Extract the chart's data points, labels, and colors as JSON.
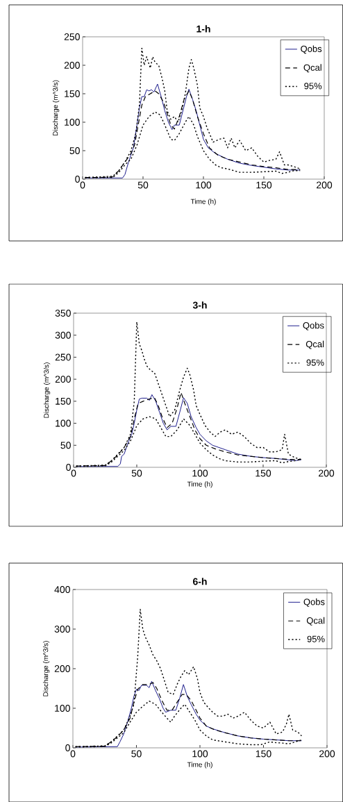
{
  "chart_data": [
    {
      "type": "line",
      "title": "1-h",
      "xlabel": "Time (h)",
      "ylabel": "Discharge (m^3/s)",
      "xlim": [
        0,
        200
      ],
      "xticks": [
        0,
        50,
        100,
        150,
        200
      ],
      "ylim": [
        0,
        250
      ],
      "yticks": [
        0,
        50,
        100,
        150,
        200,
        250
      ],
      "legend": "top right",
      "series": [
        {
          "name": "Qobs",
          "color": "#1c1c8c",
          "line_style": "solid",
          "x": [
            2,
            33,
            35,
            38,
            42,
            45,
            47,
            49,
            51,
            53,
            55,
            57,
            59,
            62,
            65,
            68,
            71,
            74,
            76,
            80,
            83,
            86,
            88,
            91,
            94,
            97,
            100,
            104,
            110,
            120,
            130,
            140,
            150,
            160,
            170,
            180
          ],
          "values": [
            2,
            2,
            8,
            30,
            55,
            95,
            125,
            145,
            145,
            157,
            155,
            157,
            153,
            167,
            145,
            120,
            100,
            87,
            95,
            95,
            120,
            145,
            158,
            140,
            120,
            95,
            70,
            55,
            45,
            35,
            28,
            24,
            21,
            18,
            16,
            16
          ]
        },
        {
          "name": "Qcal",
          "color": "#000000",
          "line_style": "dashed",
          "x": [
            2,
            15,
            25,
            30,
            35,
            40,
            43,
            46,
            49,
            52,
            56,
            60,
            63,
            67,
            70,
            73,
            76,
            80,
            84,
            88,
            91,
            95,
            100,
            105,
            112,
            120,
            130,
            140,
            150,
            160,
            170,
            180
          ],
          "values": [
            3,
            3,
            4,
            15,
            30,
            45,
            60,
            95,
            130,
            145,
            150,
            155,
            150,
            135,
            115,
            95,
            88,
            110,
            140,
            155,
            140,
            110,
            80,
            55,
            42,
            35,
            30,
            25,
            22,
            20,
            17,
            17
          ]
        },
        {
          "name": "95%",
          "color": "#000000",
          "line_style": "dotted",
          "x": [
            2,
            25,
            30,
            35,
            40,
            44,
            47,
            49,
            51,
            53,
            56,
            58,
            60,
            63,
            66,
            68,
            70,
            73,
            76,
            79,
            82,
            85,
            88,
            90,
            92,
            95,
            97,
            100,
            103,
            108,
            113,
            117,
            120,
            123,
            126,
            130,
            135,
            140,
            145,
            150,
            155,
            160,
            163,
            167,
            170,
            175,
            180
          ],
          "values": [
            3,
            5,
            15,
            30,
            50,
            80,
            130,
            230,
            200,
            215,
            195,
            215,
            205,
            200,
            175,
            155,
            120,
            105,
            110,
            100,
            120,
            150,
            195,
            210,
            195,
            165,
            125,
            110,
            90,
            65,
            70,
            72,
            55,
            72,
            55,
            68,
            50,
            55,
            40,
            30,
            33,
            35,
            48,
            25,
            25,
            22,
            18
          ]
        },
        {
          "color": "#000000",
          "line_style": "dotted",
          "x": [
            2,
            25,
            30,
            35,
            40,
            45,
            50,
            55,
            60,
            64,
            67,
            70,
            73,
            76,
            80,
            85,
            88,
            92,
            95,
            100,
            105,
            110,
            115,
            120,
            125,
            130,
            140,
            150,
            160,
            165,
            170,
            175,
            180
          ],
          "values": [
            2,
            3,
            12,
            25,
            35,
            60,
            95,
            110,
            118,
            113,
            100,
            85,
            70,
            68,
            80,
            100,
            110,
            95,
            75,
            50,
            35,
            25,
            20,
            18,
            15,
            12,
            12,
            13,
            14,
            10,
            12,
            15,
            15
          ]
        }
      ]
    },
    {
      "type": "line",
      "title": "3-h",
      "xlabel": "Time (h)",
      "ylabel": "Discharge (m^3/s)",
      "xlim": [
        0,
        200
      ],
      "xticks": [
        0,
        50,
        100,
        150,
        200
      ],
      "ylim": [
        0,
        350
      ],
      "yticks": [
        0,
        50,
        100,
        150,
        200,
        250,
        300,
        350
      ],
      "legend": "top right",
      "series": [
        {
          "name": "Qobs",
          "color": "#1c1c8c",
          "line_style": "solid",
          "x": [
            2,
            35,
            37,
            38,
            40,
            43,
            46,
            48,
            50,
            52,
            54,
            58,
            60,
            62,
            65,
            68,
            71,
            74,
            77,
            81,
            84,
            87,
            90,
            93,
            97,
            100,
            105,
            110,
            120,
            130,
            140,
            150,
            160,
            170,
            175,
            180
          ],
          "values": [
            2,
            2,
            8,
            25,
            30,
            55,
            75,
            100,
            130,
            155,
            157,
            157,
            152,
            165,
            150,
            125,
            100,
            85,
            93,
            93,
            125,
            158,
            145,
            115,
            90,
            75,
            60,
            50,
            40,
            30,
            25,
            22,
            20,
            17,
            15,
            17
          ]
        },
        {
          "name": "Qcal",
          "color": "#000000",
          "line_style": "dashed",
          "x": [
            2,
            25,
            30,
            35,
            40,
            45,
            48,
            51,
            55,
            60,
            64,
            67,
            70,
            74,
            78,
            82,
            85,
            88,
            92,
            96,
            100,
            105,
            112,
            120,
            130,
            140,
            150,
            160,
            170,
            180
          ],
          "values": [
            3,
            4,
            15,
            28,
            45,
            70,
            110,
            145,
            150,
            155,
            158,
            140,
            115,
            90,
            100,
            135,
            170,
            145,
            115,
            85,
            65,
            50,
            42,
            35,
            28,
            25,
            22,
            20,
            18,
            18
          ]
        },
        {
          "name": "95%",
          "color": "#000000",
          "line_style": "dotted",
          "x": [
            2,
            25,
            30,
            35,
            40,
            45,
            48,
            50,
            52,
            54,
            56,
            58,
            61,
            64,
            67,
            70,
            73,
            76,
            80,
            84,
            87,
            90,
            92,
            95,
            97,
            100,
            104,
            108,
            112,
            116,
            120,
            125,
            130,
            135,
            140,
            145,
            150,
            155,
            160,
            165,
            167,
            170,
            175,
            180
          ],
          "values": [
            3,
            5,
            15,
            30,
            45,
            75,
            150,
            330,
            280,
            265,
            245,
            230,
            220,
            215,
            190,
            165,
            140,
            115,
            130,
            175,
            205,
            225,
            210,
            175,
            140,
            120,
            95,
            80,
            70,
            80,
            85,
            75,
            80,
            70,
            55,
            45,
            45,
            35,
            35,
            40,
            75,
            30,
            22,
            18
          ]
        },
        {
          "color": "#000000",
          "line_style": "dotted",
          "x": [
            2,
            25,
            30,
            35,
            40,
            45,
            48,
            50,
            55,
            60,
            65,
            69,
            73,
            77,
            82,
            87,
            92,
            97,
            100,
            105,
            110,
            115,
            120,
            130,
            140,
            150,
            160,
            165,
            170,
            175,
            180
          ],
          "values": [
            2,
            3,
            12,
            25,
            38,
            60,
            80,
            95,
            110,
            115,
            110,
            90,
            70,
            70,
            85,
            110,
            95,
            70,
            55,
            40,
            28,
            20,
            15,
            12,
            12,
            14,
            15,
            10,
            13,
            15,
            18
          ]
        }
      ]
    },
    {
      "type": "line",
      "title": "6-h",
      "xlabel": "Time (h)",
      "ylabel": "Discharge (m^3/s)",
      "xlim": [
        0,
        200
      ],
      "xticks": [
        0,
        50,
        100,
        150,
        200
      ],
      "ylim": [
        0,
        400
      ],
      "yticks": [
        0,
        100,
        200,
        300,
        400
      ],
      "legend": "top right",
      "series": [
        {
          "name": "Qobs",
          "color": "#1c1c8c",
          "line_style": "solid",
          "x": [
            2,
            35,
            37,
            40,
            43,
            46,
            48,
            50,
            52,
            54,
            58,
            60,
            62,
            65,
            68,
            71,
            73,
            77,
            81,
            84,
            87,
            90,
            93,
            97,
            100,
            105,
            110,
            120,
            130,
            140,
            150,
            160,
            170,
            180
          ],
          "values": [
            2,
            3,
            15,
            35,
            65,
            100,
            130,
            148,
            145,
            158,
            158,
            152,
            168,
            145,
            125,
            100,
            90,
            95,
            95,
            125,
            160,
            130,
            110,
            85,
            70,
            55,
            48,
            38,
            30,
            25,
            22,
            20,
            18,
            18
          ]
        },
        {
          "name": "Qcal",
          "color": "#000000",
          "line_style": "dashed",
          "x": [
            2,
            25,
            30,
            35,
            40,
            45,
            48,
            51,
            55,
            60,
            63,
            66,
            70,
            74,
            78,
            82,
            86,
            89,
            93,
            97,
            100,
            105,
            112,
            120,
            130,
            140,
            150,
            160,
            170,
            180
          ],
          "values": [
            3,
            4,
            15,
            28,
            45,
            75,
            115,
            148,
            160,
            160,
            165,
            150,
            120,
            95,
            95,
            115,
            135,
            135,
            120,
            95,
            75,
            55,
            45,
            38,
            30,
            25,
            22,
            20,
            18,
            18
          ]
        },
        {
          "name": "95%",
          "color": "#000000",
          "line_style": "dotted",
          "x": [
            2,
            25,
            30,
            35,
            40,
            45,
            48,
            51,
            53,
            55,
            57,
            60,
            63,
            66,
            69,
            72,
            75,
            79,
            82,
            85,
            88,
            91,
            95,
            98,
            100,
            103,
            107,
            110,
            114,
            118,
            122,
            126,
            130,
            135,
            140,
            145,
            150,
            155,
            160,
            165,
            168,
            170,
            173,
            177,
            180
          ],
          "values": [
            3,
            5,
            15,
            30,
            45,
            80,
            110,
            230,
            350,
            300,
            280,
            260,
            235,
            220,
            200,
            170,
            140,
            135,
            160,
            180,
            195,
            185,
            205,
            175,
            140,
            115,
            100,
            90,
            80,
            80,
            85,
            75,
            80,
            90,
            70,
            55,
            50,
            65,
            35,
            40,
            60,
            85,
            45,
            40,
            30
          ]
        },
        {
          "color": "#000000",
          "line_style": "dotted",
          "x": [
            2,
            25,
            30,
            35,
            40,
            45,
            50,
            55,
            60,
            65,
            70,
            74,
            77,
            80,
            85,
            88,
            92,
            96,
            100,
            105,
            110,
            120,
            130,
            140,
            148,
            155,
            160,
            165,
            170,
            175,
            180
          ],
          "values": [
            2,
            3,
            12,
            25,
            38,
            65,
            90,
            105,
            118,
            110,
            90,
            75,
            65,
            80,
            100,
            110,
            90,
            70,
            45,
            30,
            20,
            15,
            10,
            8,
            8,
            15,
            13,
            12,
            10,
            15,
            20
          ]
        }
      ]
    }
  ]
}
